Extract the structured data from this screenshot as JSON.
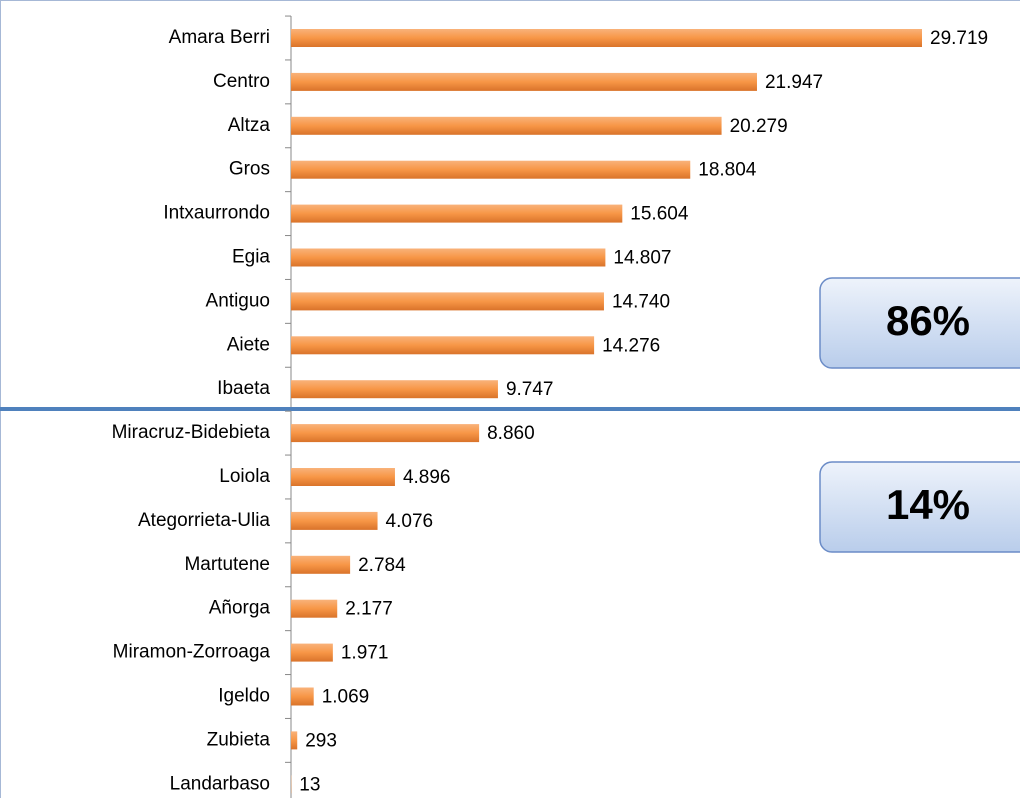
{
  "chart_data": {
    "type": "bar",
    "orientation": "horizontal",
    "categories": [
      "Amara Berri",
      "Centro",
      "Altza",
      "Gros",
      "Intxaurrondo",
      "Egia",
      "Antiguo",
      "Aiete",
      "Ibaeta",
      "Miracruz-Bidebieta",
      "Loiola",
      "Ategorrieta-Ulia",
      "Martutene",
      "Añorga",
      "Miramon-Zorroaga",
      "Igeldo",
      "Zubieta",
      "Landarbaso"
    ],
    "values": [
      29719,
      21947,
      20279,
      18804,
      15604,
      14807,
      14740,
      14276,
      9747,
      8860,
      4896,
      4076,
      2784,
      2177,
      1971,
      1069,
      293,
      13
    ],
    "value_labels": [
      "29.719",
      "21.947",
      "20.279",
      "18.804",
      "15.604",
      "14.807",
      "14.740",
      "14.276",
      "9.747",
      "8.860",
      "4.896",
      "4.076",
      "2.784",
      "2.177",
      "1.971",
      "1.069",
      "293",
      "13"
    ],
    "color": "#f79646",
    "annotations": [
      "86%",
      "14%"
    ]
  }
}
